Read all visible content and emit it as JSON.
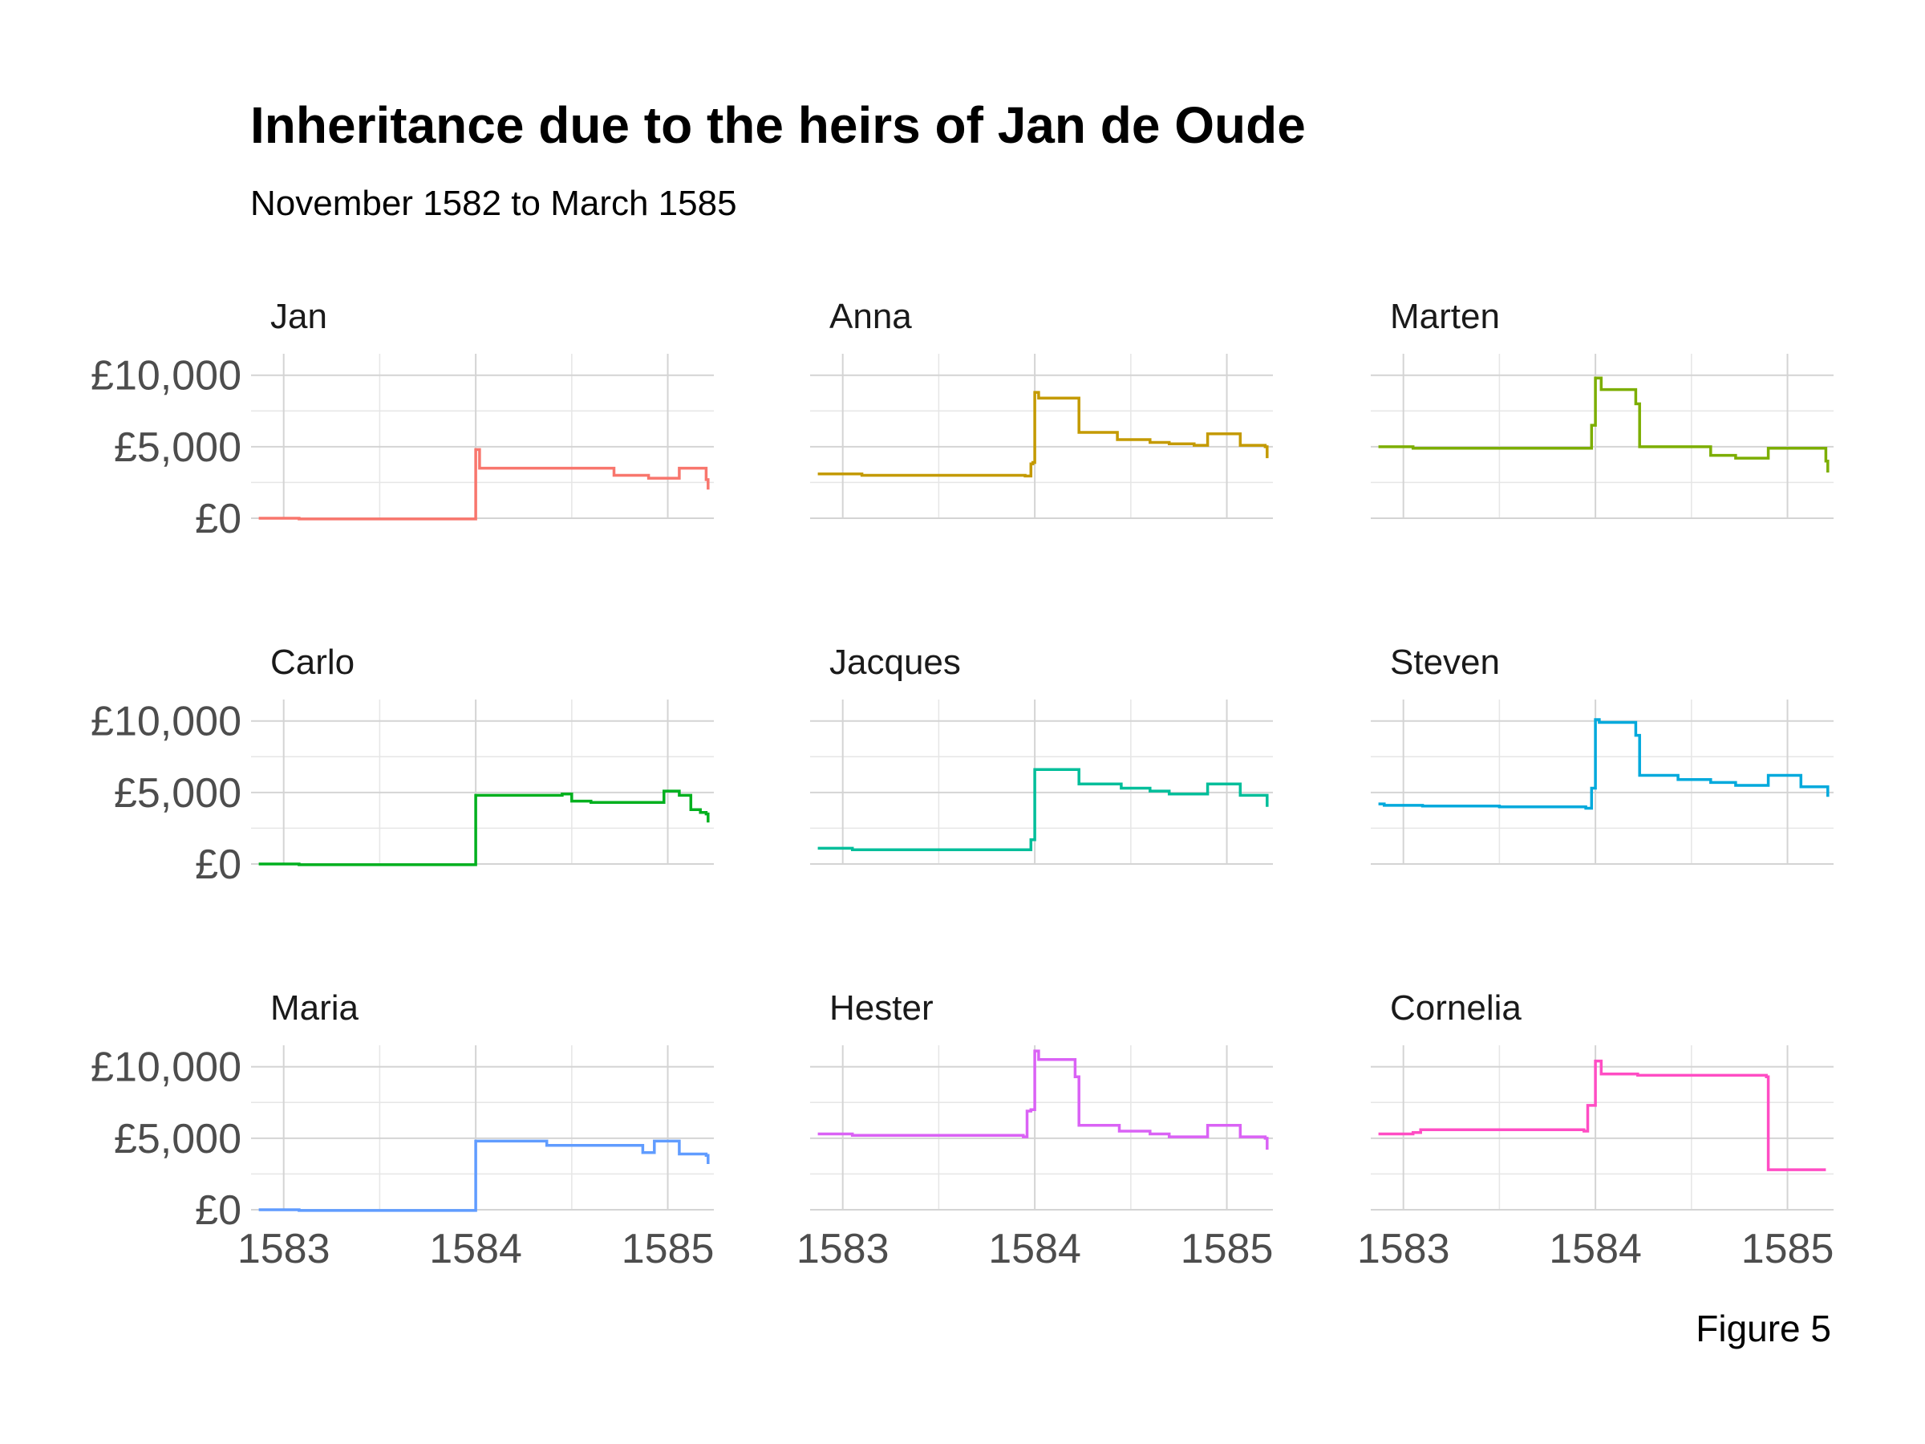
{
  "figure": {
    "title": "Inheritance due to the heirs of Jan de Oude",
    "subtitle": "November 1582 to March 1585",
    "caption": "Figure 5"
  },
  "chart_data": {
    "type": "line",
    "line_shape": "step",
    "facet_layout": "3x3",
    "x_unit": "year",
    "xlim": [
      1582.83,
      1585.24
    ],
    "ylim": [
      0,
      11500
    ],
    "x_ticks": [
      1583,
      1584,
      1585
    ],
    "x_tick_labels": [
      "1583",
      "1584",
      "1585"
    ],
    "y_ticks": [
      0,
      5000,
      10000
    ],
    "y_tick_labels": [
      "£0",
      "£5,000",
      "£10,000"
    ],
    "grid": true,
    "legend": "none",
    "series": [
      {
        "name": "Jan",
        "color": "#F8766D",
        "x": [
          1582.87,
          1583.08,
          1583.98,
          1584.0,
          1584.02,
          1584.6,
          1584.72,
          1584.9,
          1585.06,
          1585.2,
          1585.21
        ],
        "y": [
          0,
          -50,
          -50,
          4800,
          3500,
          3500,
          3000,
          2800,
          3500,
          2700,
          2000
        ]
      },
      {
        "name": "Anna",
        "color": "#C49A00",
        "x": [
          1582.87,
          1583.1,
          1583.5,
          1583.95,
          1583.98,
          1583.99,
          1584.0,
          1584.02,
          1584.2,
          1584.23,
          1584.43,
          1584.6,
          1584.7,
          1584.83,
          1584.9,
          1585.07,
          1585.2,
          1585.21
        ],
        "y": [
          3100,
          3000,
          3000,
          2950,
          3800,
          3900,
          8800,
          8400,
          8400,
          6000,
          5500,
          5300,
          5200,
          5100,
          5900,
          5100,
          5000,
          4200
        ]
      },
      {
        "name": "Marten",
        "color": "#7CAE00",
        "x": [
          1582.87,
          1583.05,
          1583.95,
          1583.98,
          1584.0,
          1584.03,
          1584.2,
          1584.21,
          1584.23,
          1584.57,
          1584.6,
          1584.73,
          1584.9,
          1585.07,
          1585.2,
          1585.21
        ],
        "y": [
          5000,
          4900,
          4900,
          6500,
          9800,
          9000,
          9000,
          8000,
          5000,
          5000,
          4400,
          4200,
          4900,
          4900,
          4000,
          3200
        ]
      },
      {
        "name": "Carlo",
        "color": "#00B01E",
        "x": [
          1582.87,
          1583.08,
          1583.98,
          1584.0,
          1584.2,
          1584.45,
          1584.5,
          1584.6,
          1584.9,
          1584.98,
          1585.06,
          1585.12,
          1585.17,
          1585.2,
          1585.21
        ],
        "y": [
          0,
          -50,
          -50,
          4800,
          4800,
          4900,
          4400,
          4300,
          4300,
          5100,
          4800,
          3800,
          3600,
          3500,
          2900
        ]
      },
      {
        "name": "Jacques",
        "color": "#00BE9A",
        "x": [
          1582.87,
          1583.05,
          1583.95,
          1583.98,
          1584.0,
          1584.23,
          1584.45,
          1584.6,
          1584.7,
          1584.9,
          1585.07,
          1585.2,
          1585.21
        ],
        "y": [
          1100,
          1000,
          1000,
          1700,
          6600,
          5600,
          5300,
          5100,
          4900,
          5600,
          4800,
          4800,
          4000
        ]
      },
      {
        "name": "Steven",
        "color": "#00A9DC",
        "x": [
          1582.87,
          1582.9,
          1583.1,
          1583.5,
          1583.95,
          1583.98,
          1584.0,
          1584.02,
          1584.2,
          1584.21,
          1584.23,
          1584.43,
          1584.6,
          1584.73,
          1584.9,
          1585.07,
          1585.2,
          1585.21
        ],
        "y": [
          4200,
          4100,
          4050,
          4000,
          3900,
          5300,
          10100,
          9900,
          9900,
          9000,
          6200,
          5900,
          5700,
          5500,
          6200,
          5400,
          5400,
          4700
        ]
      },
      {
        "name": "Maria",
        "color": "#609CFF",
        "x": [
          1582.87,
          1583.08,
          1583.98,
          1584.0,
          1584.37,
          1584.87,
          1584.93,
          1585.06,
          1585.2,
          1585.21
        ],
        "y": [
          0,
          -50,
          -50,
          4800,
          4500,
          4000,
          4800,
          3900,
          3800,
          3200
        ]
      },
      {
        "name": "Hester",
        "color": "#DA62F5",
        "x": [
          1582.87,
          1583.05,
          1583.5,
          1583.94,
          1583.96,
          1583.98,
          1584.0,
          1584.02,
          1584.2,
          1584.21,
          1584.23,
          1584.44,
          1584.6,
          1584.7,
          1584.9,
          1585.07,
          1585.2,
          1585.21
        ],
        "y": [
          5300,
          5200,
          5200,
          5100,
          6900,
          7000,
          11100,
          10500,
          10500,
          9300,
          5900,
          5500,
          5300,
          5100,
          5900,
          5100,
          5000,
          4200
        ]
      },
      {
        "name": "Cornelia",
        "color": "#FF4DC4",
        "x": [
          1582.87,
          1583.05,
          1583.09,
          1583.5,
          1583.94,
          1583.96,
          1584.0,
          1584.03,
          1584.2,
          1584.22,
          1584.89,
          1584.9,
          1585.2
        ],
        "y": [
          5300,
          5400,
          5600,
          5600,
          5500,
          7300,
          10400,
          9500,
          9500,
          9400,
          9300,
          2800,
          2800
        ]
      }
    ]
  }
}
